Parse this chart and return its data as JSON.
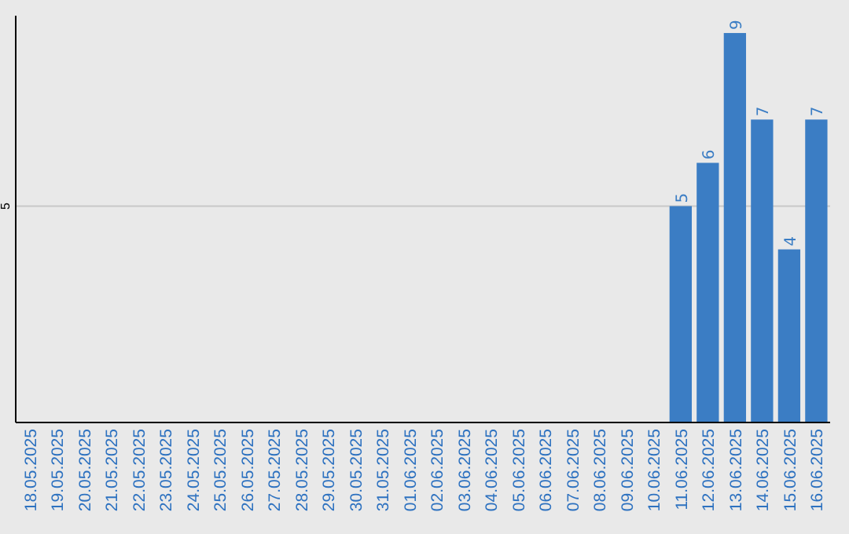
{
  "chart_data": {
    "type": "bar",
    "categories": [
      "18.05.2025",
      "19.05.2025",
      "20.05.2025",
      "21.05.2025",
      "22.05.2025",
      "23.05.2025",
      "24.05.2025",
      "25.05.2025",
      "26.05.2025",
      "27.05.2025",
      "28.05.2025",
      "29.05.2025",
      "30.05.2025",
      "31.05.2025",
      "01.06.2025",
      "02.06.2025",
      "03.06.2025",
      "04.06.2025",
      "05.06.2025",
      "06.06.2025",
      "07.06.2025",
      "08.06.2025",
      "09.06.2025",
      "10.06.2025",
      "11.06.2025",
      "12.06.2025",
      "13.06.2025",
      "14.06.2025",
      "15.06.2025",
      "16.06.2025"
    ],
    "values": [
      null,
      null,
      null,
      null,
      null,
      null,
      null,
      null,
      null,
      null,
      null,
      null,
      null,
      null,
      null,
      null,
      null,
      null,
      null,
      null,
      null,
      null,
      null,
      null,
      5,
      6,
      9,
      7,
      4,
      7
    ],
    "color": "#3b7dc4",
    "ylim": [
      0,
      9.4
    ],
    "yticks": [
      5
    ],
    "grid": "y",
    "data_labels": true
  }
}
